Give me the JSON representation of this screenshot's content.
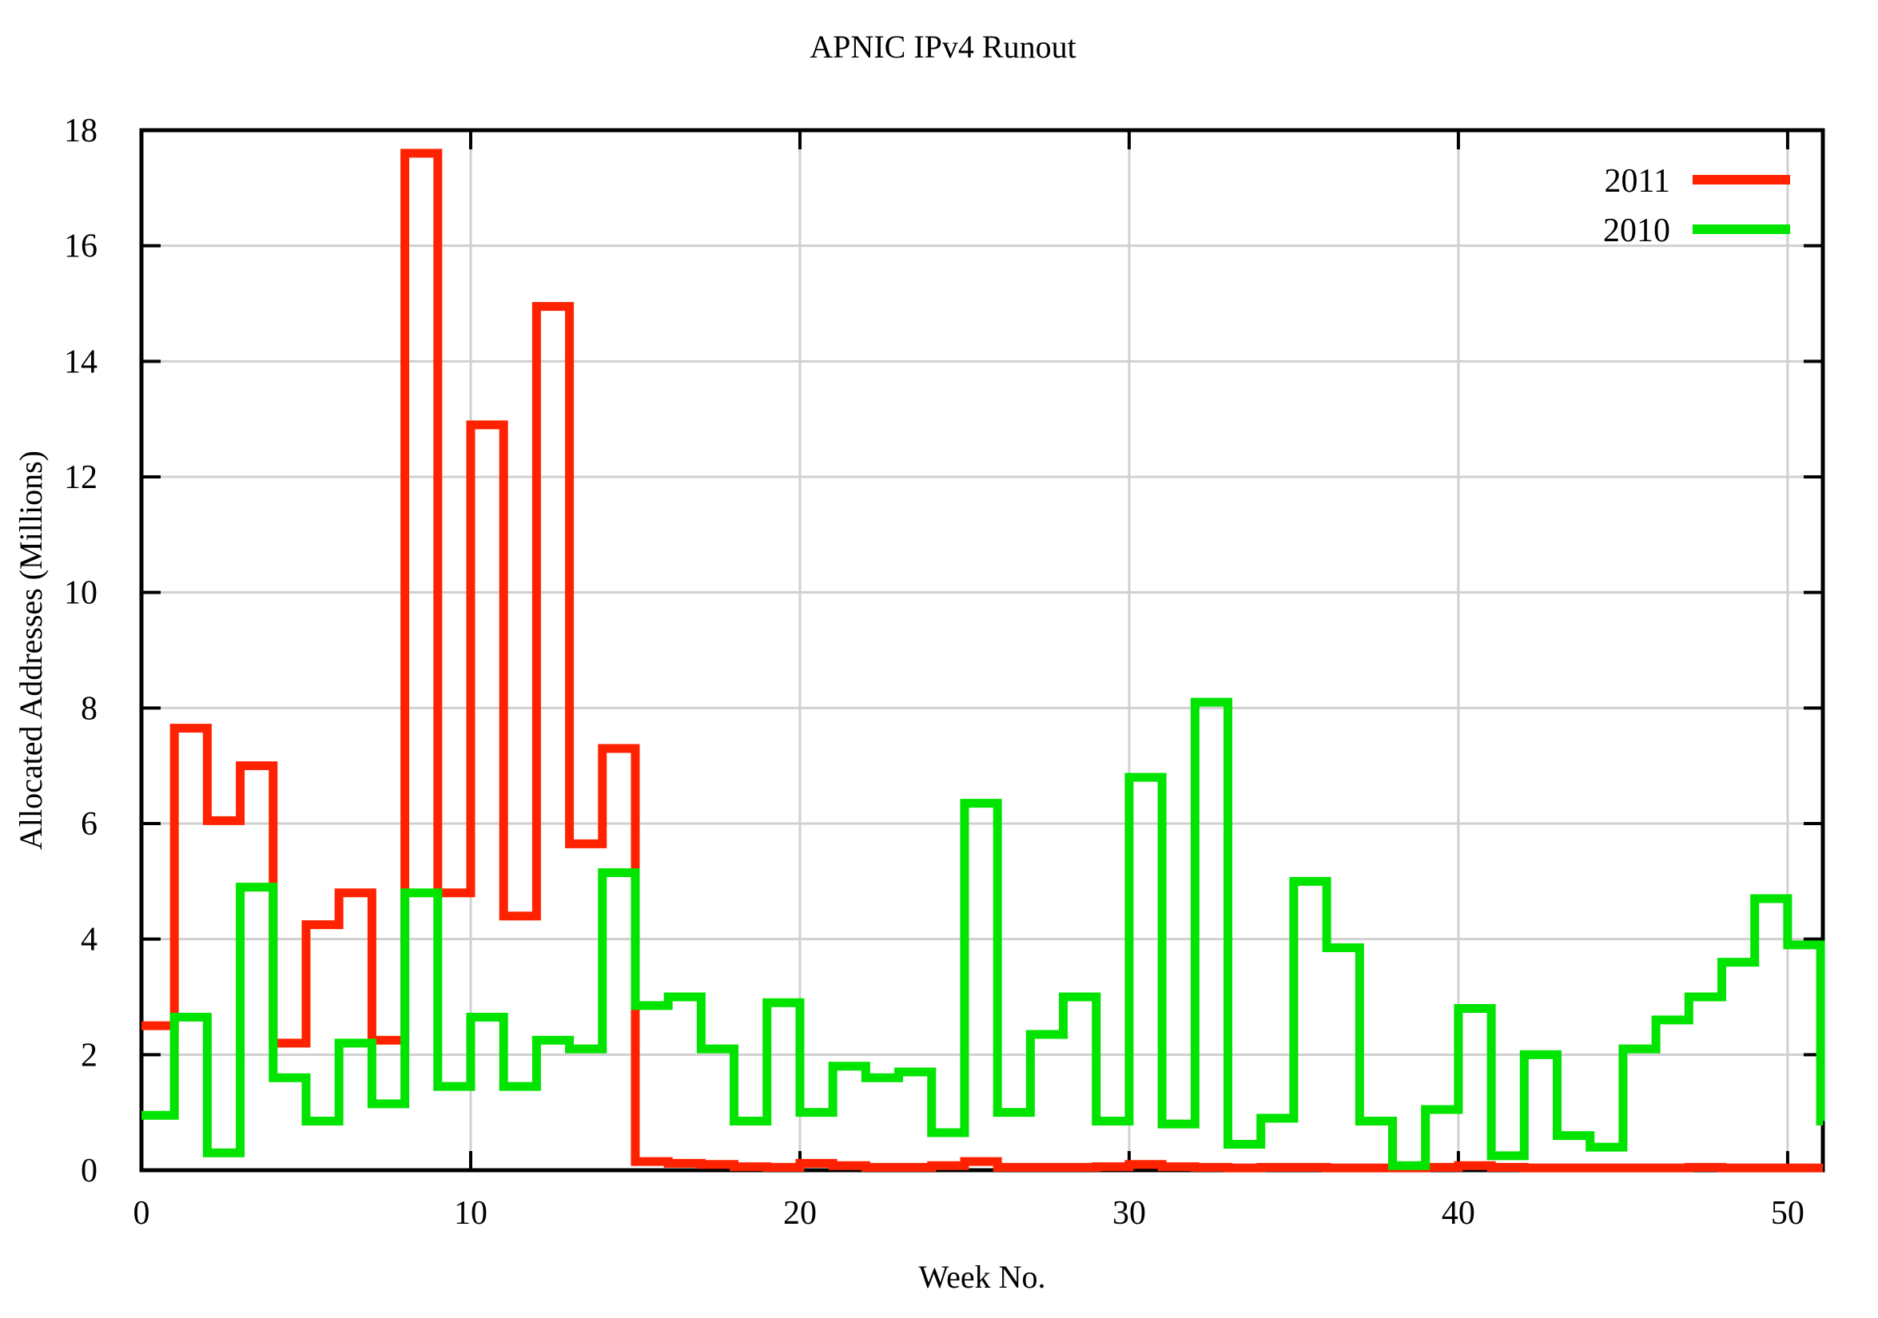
{
  "title": "APNIC IPv4 Runout",
  "colors": {
    "background": "#ffffff",
    "series_2011": "#ff2200",
    "series_2010": "#00e400",
    "grid": "#d0d0d0",
    "border": "#000000",
    "text": "#000000"
  },
  "legend": {
    "position": "top-right",
    "items": [
      {
        "label": "2011",
        "color": "#ff2200"
      },
      {
        "label": "2010",
        "color": "#00e400"
      }
    ]
  },
  "chart_data": {
    "type": "line",
    "subtype": "step-histogram",
    "title": "APNIC IPv4 Runout",
    "xlabel": "Week No.",
    "ylabel": "Allocated Addresses (Millions)",
    "xlim": [
      0,
      51.07
    ],
    "ylim": [
      0,
      18
    ],
    "xticks": [
      0,
      10,
      20,
      30,
      40,
      50
    ],
    "yticks": [
      0,
      2,
      4,
      6,
      8,
      10,
      12,
      14,
      16,
      18
    ],
    "grid": true,
    "legend_position": "top-right",
    "x": [
      0,
      1,
      2,
      3,
      4,
      5,
      6,
      7,
      8,
      9,
      10,
      11,
      12,
      13,
      14,
      15,
      16,
      17,
      18,
      19,
      20,
      21,
      22,
      23,
      24,
      25,
      26,
      27,
      28,
      29,
      30,
      31,
      32,
      33,
      34,
      35,
      36,
      37,
      38,
      39,
      40,
      41,
      42,
      43,
      44,
      45,
      46,
      47,
      48,
      49,
      50,
      51
    ],
    "series": [
      {
        "name": "2011",
        "color": "#ff2200",
        "values": [
          2.5,
          7.65,
          6.05,
          7.0,
          2.2,
          4.25,
          4.8,
          2.25,
          17.6,
          4.8,
          12.9,
          4.4,
          14.95,
          5.65,
          7.3,
          0.15,
          0.12,
          0.1,
          0.06,
          0.05,
          0.12,
          0.08,
          0.05,
          0.05,
          0.08,
          0.15,
          0.05,
          0.05,
          0.05,
          0.06,
          0.1,
          0.06,
          0.05,
          0.04,
          0.05,
          0.05,
          0.04,
          0.04,
          0.04,
          0.05,
          0.08,
          0.05,
          0.04,
          0.04,
          0.04,
          0.04,
          0.04,
          0.05,
          0.04,
          0.04,
          0.04,
          0.04
        ]
      },
      {
        "name": "2010",
        "color": "#00e400",
        "values": [
          0.95,
          2.65,
          0.3,
          4.9,
          1.6,
          0.85,
          2.2,
          1.15,
          4.8,
          1.45,
          2.65,
          1.45,
          2.25,
          2.1,
          5.15,
          2.85,
          3.0,
          2.1,
          0.85,
          2.9,
          1.0,
          1.8,
          1.6,
          1.7,
          0.65,
          6.35,
          1.0,
          2.35,
          3.0,
          0.85,
          6.8,
          0.8,
          8.1,
          0.45,
          0.9,
          5.0,
          3.85,
          0.85,
          0.08,
          1.05,
          2.8,
          0.25,
          2.0,
          0.6,
          0.4,
          2.1,
          2.6,
          3.0,
          3.6,
          4.7,
          3.9,
          0.85
        ]
      }
    ]
  }
}
